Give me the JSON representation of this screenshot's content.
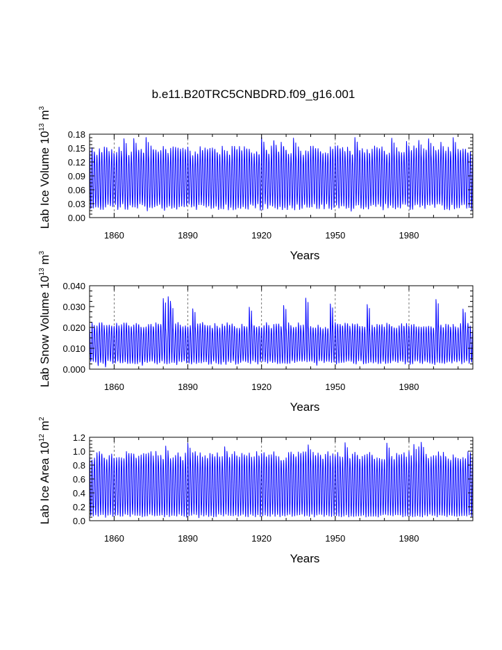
{
  "figure": {
    "title": "b.e11.B20TRC5CNBDRD.f09_g16.001"
  },
  "colors": {
    "line": "#0000ff",
    "axis": "#000000",
    "grid": "#555555"
  },
  "chart_data": [
    {
      "type": "line",
      "xlabel": "Years",
      "ylabel_main": "Lab Ice Volume 10",
      "ylabel_exp": "13",
      "ylabel_tail": " m",
      "ylabel_unit_exp": "3",
      "xlim": [
        1850,
        2006
      ],
      "ylim": [
        0,
        0.18
      ],
      "xticks": [
        1860,
        1890,
        1920,
        1950,
        1980
      ],
      "xtick_labels": [
        "1860",
        "1890",
        "1920",
        "1950",
        "1980"
      ],
      "yticks": [
        0.0,
        0.03,
        0.06,
        0.09,
        0.12,
        0.15,
        0.18
      ],
      "ytick_labels": [
        "0.00",
        "0.03",
        "0.06",
        "0.09",
        "0.12",
        "0.15",
        "0.18"
      ],
      "grid": "vertical dashed at x ticks",
      "series": {
        "name": "Lab Ice Volume",
        "cycle": "annual",
        "year_start": 1850,
        "year_end": 2005,
        "max_typical": 0.152,
        "min_typical": 0.022,
        "max_peak": 0.176,
        "min_trough": 0.012
      }
    },
    {
      "type": "line",
      "xlabel": "Years",
      "ylabel_main": "Lab Snow Volume 10",
      "ylabel_exp": "13",
      "ylabel_tail": " m",
      "ylabel_unit_exp": "3",
      "xlim": [
        1850,
        2006
      ],
      "ylim": [
        0,
        0.04
      ],
      "xticks": [
        1860,
        1890,
        1920,
        1950,
        1980
      ],
      "xtick_labels": [
        "1860",
        "1890",
        "1920",
        "1950",
        "1980"
      ],
      "yticks": [
        0.0,
        0.01,
        0.02,
        0.03,
        0.04
      ],
      "ytick_labels": [
        "0.000",
        "0.010",
        "0.020",
        "0.030",
        "0.040"
      ],
      "grid": "vertical dashed at x ticks",
      "series": {
        "name": "Lab Snow Volume",
        "cycle": "annual",
        "year_start": 1850,
        "year_end": 2005,
        "max_typical": 0.022,
        "min_typical": 0.003,
        "max_peak": 0.035,
        "min_trough": 0.001
      }
    },
    {
      "type": "line",
      "xlabel": "Years",
      "ylabel_main": "Lab Ice Area 10",
      "ylabel_exp": "12",
      "ylabel_tail": " m",
      "ylabel_unit_exp": "2",
      "xlim": [
        1850,
        2006
      ],
      "ylim": [
        0,
        1.2
      ],
      "xticks": [
        1860,
        1890,
        1920,
        1950,
        1980
      ],
      "xtick_labels": [
        "1860",
        "1890",
        "1920",
        "1950",
        "1980"
      ],
      "yticks": [
        0.0,
        0.2,
        0.4,
        0.6,
        0.8,
        1.0,
        1.2
      ],
      "ytick_labels": [
        "0.0",
        "0.2",
        "0.4",
        "0.6",
        "0.8",
        "1.0",
        "1.2"
      ],
      "grid": "vertical dashed at x ticks",
      "series": {
        "name": "Lab Ice Area",
        "cycle": "annual",
        "year_start": 1850,
        "year_end": 2005,
        "max_typical": 0.98,
        "min_typical": 0.07,
        "max_peak": 1.13,
        "min_trough": 0.04
      }
    }
  ]
}
